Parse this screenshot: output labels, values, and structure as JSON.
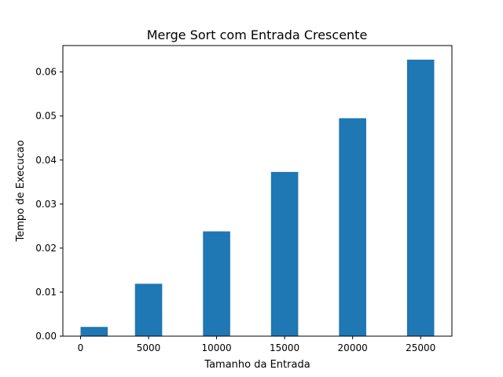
{
  "chart_data": {
    "type": "bar",
    "title": "Merge Sort com Entrada Crescente",
    "xlabel": "Tamanho da Entrada",
    "ylabel": "Tempo de Execucao",
    "x": [
      1000,
      5000,
      10000,
      15000,
      20000,
      25000
    ],
    "values": [
      0.0021,
      0.0119,
      0.0238,
      0.0373,
      0.0495,
      0.0628
    ],
    "bar_width": 2000,
    "xlim": [
      -1300,
      27300
    ],
    "ylim": [
      0,
      0.066
    ],
    "xticks": [
      0,
      5000,
      10000,
      15000,
      20000,
      25000
    ],
    "xtick_labels": [
      "0",
      "5000",
      "10000",
      "15000",
      "20000",
      "25000"
    ],
    "yticks": [
      0,
      0.01,
      0.02,
      0.03,
      0.04,
      0.05,
      0.06
    ],
    "ytick_labels": [
      "0.00",
      "0.01",
      "0.02",
      "0.03",
      "0.04",
      "0.05",
      "0.06"
    ],
    "grid": false,
    "bar_color": "#1f77b4"
  }
}
